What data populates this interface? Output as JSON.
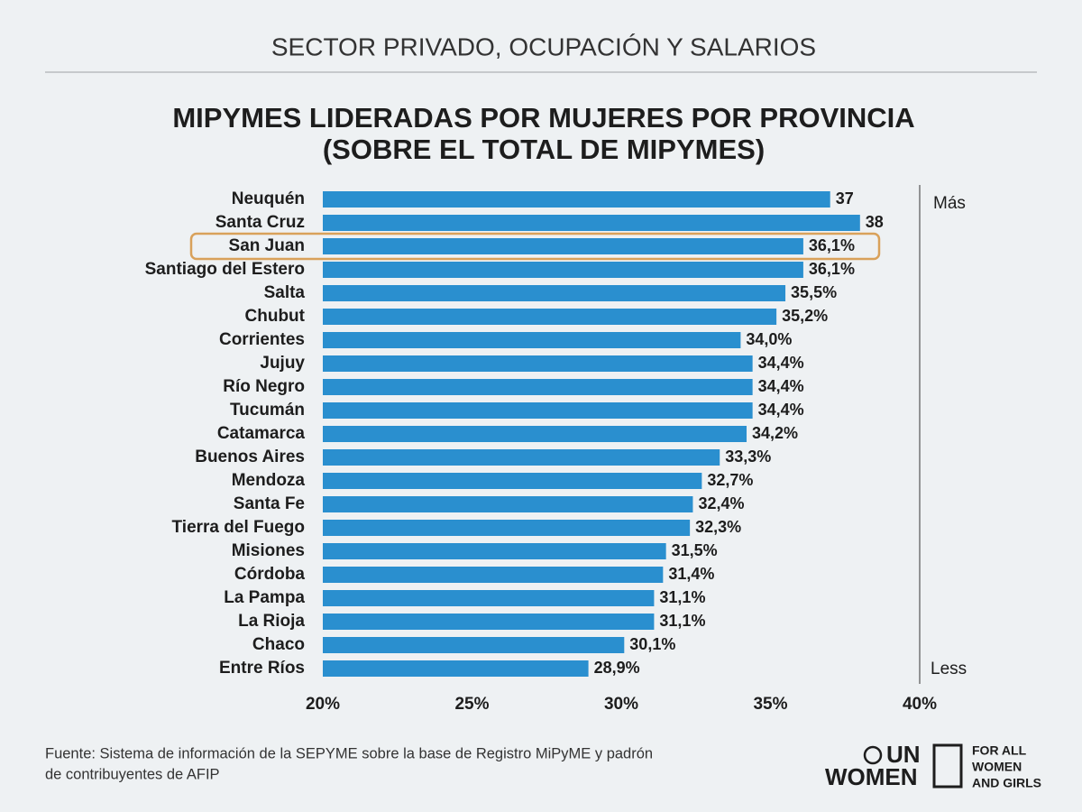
{
  "header": "SECTOR PRIVADO, OCUPACIÓN Y SALARIOS",
  "chart_data": {
    "type": "barh",
    "title": [
      "MIPYMES LIDERADAS POR MUJERES POR PROVINCIA",
      "(SOBRE EL TOTAL DE MIPYMES)"
    ],
    "categories": [
      "Neuquén",
      "Santa Cruz",
      "San Juan",
      "Santiago del Estero",
      "Salta",
      "Chubut",
      "Corrientes",
      "Jujuy",
      "Río Negro",
      "Tucumán",
      "Catamarca",
      "Buenos Aires",
      "Mendoza",
      "Santa Fe",
      "Tierra del Fuego",
      "Misiones",
      "Córdoba",
      "La Pampa",
      "La Rioja",
      "Chaco",
      "Entre Ríos"
    ],
    "values": [
      37,
      38,
      36.1,
      36.1,
      35.5,
      35.2,
      34.0,
      34.4,
      34.4,
      34.4,
      34.2,
      33.3,
      32.7,
      32.4,
      32.3,
      31.5,
      31.4,
      31.1,
      31.1,
      30.1,
      28.9
    ],
    "value_labels": [
      "37",
      "38",
      "36,1%",
      "36,1%",
      "35,5%",
      "35,2%",
      "34,0%",
      "34,4%",
      "34,4%",
      "34,4%",
      "34,2%",
      "33,3%",
      "32,7%",
      "32,4%",
      "32,3%",
      "31,5%",
      "31,4%",
      "31,1%",
      "31,1%",
      "30,1%",
      "28,9%"
    ],
    "color": "#2a8fcf",
    "xlim": [
      20,
      40
    ],
    "xticks": [
      {
        "value": 20,
        "label": "20%"
      },
      {
        "value": 25,
        "label": "25%"
      },
      {
        "value": 30,
        "label": "30%"
      },
      {
        "value": 35,
        "label": "35%"
      },
      {
        "value": 40,
        "label": "40%"
      }
    ],
    "highlight": {
      "category_index": 2,
      "color": "#d9a15a"
    },
    "scale_labels": {
      "top": "Más",
      "bottom": "Less"
    }
  },
  "source": [
    "Fuente: Sistema de información de la SEPYME sobre la base de Registro MiPyME y padrón",
    "de contribuyentes de AFIP"
  ],
  "logo": {
    "name": [
      "UN",
      "WOMEN"
    ],
    "tagline": [
      "FOR ALL",
      "WOMEN",
      "AND GIRLS"
    ]
  }
}
